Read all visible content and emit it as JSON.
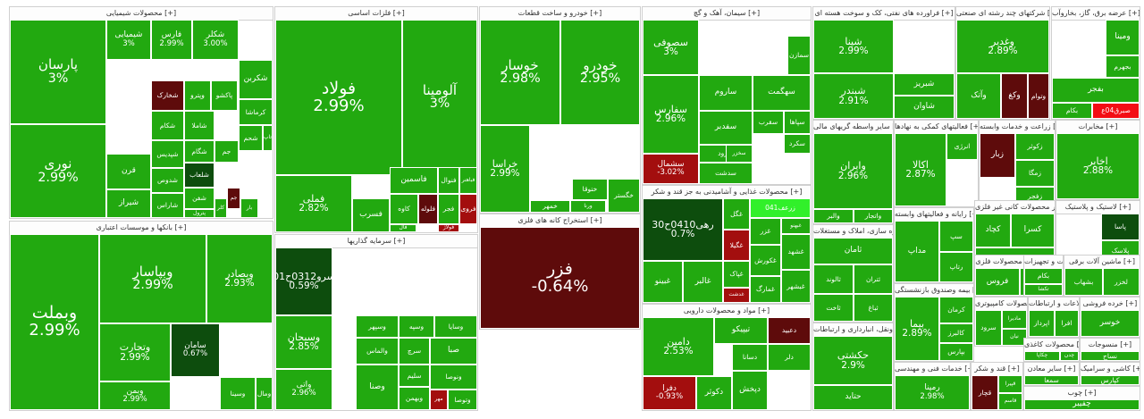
{
  "colors": {
    "up": "#22a910",
    "mid": "#1f8f0e",
    "weak": "#176d0d",
    "dark": "#0d4d0d",
    "red": "#a30e0e",
    "maroon": "#5e0b0b",
    "bright_red": "#f30d14",
    "lime": "#31f02a",
    "text": "#ffffff"
  },
  "chart_data": {
    "type": "treemap",
    "title": "Market heat map",
    "sectors": [
      {
        "name": "محصولات شیمیایی [+]",
        "tiles": [
          {
            "name": "پارسان",
            "change": "3%",
            "color": "up"
          },
          {
            "name": "نوری",
            "change": "2.99%",
            "color": "up"
          },
          {
            "name": "شیمیایی",
            "change": "3%",
            "color": "up"
          },
          {
            "name": "فارس",
            "change": "2.99%",
            "color": "up"
          },
          {
            "name": "شکلر",
            "change": "3.00%",
            "color": "up"
          },
          {
            "name": "شخارک",
            "color": "maroon"
          },
          {
            "name": "وپترو",
            "color": "up"
          },
          {
            "name": "پاکشو",
            "color": "up"
          },
          {
            "name": "شکربن",
            "color": "up"
          },
          {
            "name": "شکام",
            "color": "up"
          },
          {
            "name": "شپدیس",
            "color": "up"
          },
          {
            "name": "شاملا",
            "color": "up"
          },
          {
            "name": "کرماشا",
            "color": "up"
          },
          {
            "name": "شگام",
            "color": "up"
          },
          {
            "name": "جم",
            "color": "up"
          },
          {
            "name": "شحم",
            "color": "up"
          },
          {
            "name": "تاپ",
            "color": "up"
          },
          {
            "name": "قرن",
            "color": "up"
          },
          {
            "name": "شدوص",
            "color": "up"
          },
          {
            "name": "شلعاب",
            "color": "dark"
          },
          {
            "name": "شیراز",
            "color": "up"
          },
          {
            "name": "شاراس",
            "color": "up"
          },
          {
            "name": "شفن",
            "color": "up"
          },
          {
            "name": "زاگرس",
            "color": "up"
          },
          {
            "name": "پترول",
            "color": "up"
          },
          {
            "name": "جم",
            "color": "maroon"
          },
          {
            "name": "بار",
            "color": "up"
          },
          {
            "name": "کلر",
            "color": "up"
          }
        ]
      },
      {
        "name": "فلزات اساسی [+]",
        "tiles": [
          {
            "name": "فولاد",
            "change": "2.99%",
            "color": "up"
          },
          {
            "name": "آلومینا",
            "change": "3%",
            "color": "up"
          },
          {
            "name": "فملی",
            "change": "2.82%",
            "color": "up"
          },
          {
            "name": "فخوز",
            "change": "1.88%",
            "color": "weak"
          },
          {
            "name": "فاسمین",
            "color": "up"
          },
          {
            "name": "فنوال",
            "color": "up"
          },
          {
            "name": "فباهنر",
            "color": "up"
          },
          {
            "name": "فلوله",
            "color": "maroon"
          },
          {
            "name": "کاوه",
            "color": "up"
          },
          {
            "name": "فجر",
            "color": "up"
          },
          {
            "name": "فروی",
            "color": "red"
          },
          {
            "name": "فولاژ",
            "color": "red"
          },
          {
            "name": "فسرب",
            "color": "up"
          },
          {
            "name": "فسبزوار",
            "color": "up"
          },
          {
            "name": "فال",
            "color": "up"
          }
        ]
      },
      {
        "name": "خودرو و ساخت قطعات [+]",
        "tiles": [
          {
            "name": "خوسار",
            "change": "2.98%",
            "color": "up"
          },
          {
            "name": "خودرو",
            "change": "2.95%",
            "color": "up"
          },
          {
            "name": "خراسا",
            "change": "2.99%",
            "color": "up"
          },
          {
            "name": "خمهر",
            "color": "up"
          },
          {
            "name": "ختوقا",
            "color": "up"
          },
          {
            "name": "ورنا",
            "color": "up"
          },
          {
            "name": "خگستر",
            "color": "up"
          }
        ]
      },
      {
        "name": "استخراج کانه های فلزی [+]",
        "tiles": [
          {
            "name": "فزر",
            "change": "-0.64%",
            "color": "maroon"
          }
        ]
      },
      {
        "name": "سیمان، آهک و گچ [+]",
        "tiles": [
          {
            "name": "سصوفی",
            "change": "3%",
            "color": "up"
          },
          {
            "name": "سفارس",
            "change": "2.96%",
            "color": "up"
          },
          {
            "name": "ساروم",
            "color": "up"
          },
          {
            "name": "سهگمت",
            "color": "up"
          },
          {
            "name": "سمازن",
            "color": "up"
          },
          {
            "name": "سقرب",
            "color": "up"
          },
          {
            "name": "سپاها",
            "color": "up"
          },
          {
            "name": "سکرد",
            "color": "up"
          },
          {
            "name": "سفدبر",
            "color": "up"
          },
          {
            "name": "سرود",
            "color": "up"
          },
          {
            "name": "سدشت",
            "color": "up"
          },
          {
            "name": "سخزر",
            "color": "up"
          },
          {
            "name": "سشمال",
            "change": "-3.02%",
            "color": "red"
          }
        ]
      },
      {
        "name": "فراورده های نفتی، کک و سوخت هسته ای [+]",
        "tiles": [
          {
            "name": "شپنا",
            "change": "2.99%",
            "color": "up"
          },
          {
            "name": "شبندر",
            "change": "2.91%",
            "color": "up"
          },
          {
            "name": "شبریز",
            "color": "up"
          },
          {
            "name": "شاوان",
            "color": "up"
          }
        ]
      },
      {
        "name": "شرکتهای چند رشته ای صنعتی [+]",
        "tiles": [
          {
            "name": "وغدیر",
            "change": "2.89%",
            "color": "up"
          },
          {
            "name": "وکغ",
            "color": "maroon"
          },
          {
            "name": "وآتک",
            "color": "up"
          },
          {
            "name": "وتوام",
            "color": "maroon"
          }
        ]
      },
      {
        "name": "عرضه برق، گاز، بخاروآب [+]",
        "tiles": [
          {
            "name": "ومینا",
            "color": "up"
          },
          {
            "name": "بجهرم",
            "color": "up"
          },
          {
            "name": "بفجر",
            "color": "up"
          },
          {
            "name": "بکام",
            "color": "up"
          },
          {
            "name": "صبرق04ع",
            "color": "bright_red"
          }
        ]
      },
      {
        "name": "بانکها و موسسات اعتباری [+]",
        "tiles": [
          {
            "name": "وبپاسار",
            "change": "2.99%",
            "color": "up"
          },
          {
            "name": "وبملت",
            "change": "2.99%",
            "color": "up"
          },
          {
            "name": "وبصادر",
            "change": "2.93%",
            "color": "up"
          },
          {
            "name": "وتجارت",
            "change": "2.99%",
            "color": "up"
          },
          {
            "name": "وبمن",
            "change": "2.99%",
            "color": "up"
          },
          {
            "name": "سامان",
            "change": "0.67%",
            "color": "dark"
          },
          {
            "name": "وسینا",
            "color": "up"
          },
          {
            "name": "ومال",
            "color": "up"
          }
        ]
      },
      {
        "name": "سرمایه گذاریها [+]",
        "tiles": [
          {
            "name": "سرو0312ح01",
            "change": "0.59%",
            "color": "dark"
          },
          {
            "name": "وسبحان",
            "change": "2.85%",
            "color": "up"
          },
          {
            "name": "واتی",
            "change": "2.96%",
            "color": "up"
          },
          {
            "name": "وسپهر",
            "color": "up"
          },
          {
            "name": "وسپه",
            "color": "up"
          },
          {
            "name": "وسایا",
            "color": "up"
          },
          {
            "name": "والماس",
            "color": "up"
          },
          {
            "name": "سرچ",
            "color": "up"
          },
          {
            "name": "وصنا",
            "color": "up"
          },
          {
            "name": "سلیم",
            "color": "up"
          },
          {
            "name": "وبهمن",
            "color": "up"
          },
          {
            "name": "صبا",
            "color": "up"
          },
          {
            "name": "ونوصا",
            "color": "up"
          },
          {
            "name": "مهر",
            "color": "red"
          },
          {
            "name": "وتوصا",
            "color": "up"
          },
          {
            "name": "سکا",
            "color": "dark"
          }
        ]
      },
      {
        "name": "محصولات غذایی و آشامیدنی به جز قند و شکر [+]",
        "tiles": [
          {
            "name": "زرعف041",
            "color": "lime"
          },
          {
            "name": "رهی0410ح30",
            "change": "0.7%",
            "color": "dark"
          },
          {
            "name": "غگل",
            "color": "up"
          },
          {
            "name": "غگیلا",
            "color": "red"
          },
          {
            "name": "غبهنو",
            "color": "up"
          },
          {
            "name": "غزر",
            "color": "up"
          },
          {
            "name": "غکورش",
            "color": "up"
          },
          {
            "name": "غبینو",
            "color": "up"
          },
          {
            "name": "غالبر",
            "color": "up"
          },
          {
            "name": "غپاک",
            "color": "up"
          },
          {
            "name": "غمارگ",
            "color": "up"
          },
          {
            "name": "غشهد",
            "color": "up"
          },
          {
            "name": "غبشهر",
            "color": "up"
          },
          {
            "name": "غدشت",
            "color": "red"
          }
        ]
      },
      {
        "name": "مواد و محصولات دارویی [+]",
        "tiles": [
          {
            "name": "دعبید",
            "color": "maroon"
          },
          {
            "name": "تیپیکو",
            "color": "up"
          },
          {
            "name": "دامین",
            "change": "2.53%",
            "color": "up"
          },
          {
            "name": "دکوثر",
            "color": "up"
          },
          {
            "name": "دسانا",
            "color": "up"
          },
          {
            "name": "دپخش",
            "color": "up"
          },
          {
            "name": "دلر",
            "color": "up"
          },
          {
            "name": "دفرا",
            "change": "-0.93%",
            "color": "red"
          }
        ]
      },
      {
        "name": "سایر واسطه گریهای مالی [+]",
        "tiles": [
          {
            "name": "وایران",
            "change": "2.96%",
            "color": "up"
          },
          {
            "name": "والبر",
            "color": "up"
          },
          {
            "name": "واتجار",
            "color": "up"
          }
        ]
      },
      {
        "name": "فعالیتهای کمکی به نهادها [+]",
        "tiles": [
          {
            "name": "اکالا",
            "change": "2.87%",
            "color": "up"
          },
          {
            "name": "انرژی",
            "color": "up"
          }
        ]
      },
      {
        "name": "زراعت و خدمات وابسته [+]",
        "tiles": [
          {
            "name": "زکوثر",
            "color": "up"
          },
          {
            "name": "زبار",
            "color": "maroon"
          },
          {
            "name": "زمگا",
            "color": "up"
          },
          {
            "name": "زفجر",
            "color": "up"
          }
        ]
      },
      {
        "name": "مخابرات [+]",
        "tiles": [
          {
            "name": "اخابر",
            "change": "2.88%",
            "color": "up"
          }
        ]
      },
      {
        "name": "انبوه سازی، املاک و مستغلات [+]",
        "tiles": [
          {
            "name": "ثامان",
            "color": "up"
          },
          {
            "name": "ثالوند",
            "color": "up"
          },
          {
            "name": "ثتران",
            "color": "up"
          },
          {
            "name": "ثاخت",
            "color": "up"
          },
          {
            "name": "ثعمرا",
            "color": "up"
          },
          {
            "name": "ثامید",
            "color": "up"
          },
          {
            "name": "ثرکت",
            "color": "up"
          },
          {
            "name": "ثباغ",
            "color": "up"
          }
        ]
      },
      {
        "name": "بیمه وصندوق بازنشستگی [+]",
        "tiles": [
          {
            "name": "بیما",
            "change": "2.89%",
            "color": "up"
          },
          {
            "name": "کرمان",
            "color": "up"
          },
          {
            "name": "کالبرز",
            "color": "up"
          },
          {
            "name": "بپارس",
            "color": "up"
          },
          {
            "name": "کدما",
            "color": "up"
          },
          {
            "name": "بنیرو",
            "color": "up"
          }
        ]
      },
      {
        "name": "حمل ونقل، انبارداری و ارتباطات [+]",
        "tiles": [
          {
            "name": "حکشتی",
            "change": "2.9%",
            "color": "up"
          },
          {
            "name": "حتاید",
            "color": "up"
          }
        ]
      },
      {
        "name": "خدمات فنی و مهندسی [+]",
        "tiles": [
          {
            "name": "رمپنا",
            "change": "2.98%",
            "color": "up"
          }
        ]
      },
      {
        "name": "رایانه و فعالیتهای وابسته [+]",
        "tiles": [
          {
            "name": "مداپ",
            "color": "up"
          },
          {
            "name": "سپ",
            "color": "up"
          },
          {
            "name": "رتاپ",
            "color": "up"
          }
        ]
      },
      {
        "name": "سایر محصولات کانی غیر فلزی [+]",
        "tiles": [
          {
            "name": "کسرا",
            "color": "up"
          },
          {
            "name": "کچاد",
            "color": "up"
          },
          {
            "name": "کهمدا",
            "color": "up"
          }
        ]
      },
      {
        "name": "لاستیک و پلاستیک [+]",
        "tiles": [
          {
            "name": "پاسا",
            "color": "dark"
          },
          {
            "name": "پلاسک",
            "color": "up"
          }
        ]
      },
      {
        "name": "ساخت محصولات فلزی [+]",
        "tiles": [
          {
            "name": "فروس",
            "color": "up"
          },
          {
            "name": "فنفت",
            "color": "up"
          }
        ]
      },
      {
        "name": "ماشین آلات و تجهیزات [+]",
        "tiles": [
          {
            "name": "بکام",
            "color": "up"
          },
          {
            "name": "تکشا",
            "color": "up"
          }
        ]
      },
      {
        "name": "ماشین آلات برقی [+]",
        "tiles": [
          {
            "name": "بشهاب",
            "color": "up"
          },
          {
            "name": "لخزر",
            "color": "up"
          }
        ]
      },
      {
        "name": "تولید محصولات کامپیوتری [+]",
        "tiles": [
          {
            "name": "سرود",
            "color": "up"
          },
          {
            "name": "مادیرا",
            "color": "up"
          },
          {
            "name": "نیان",
            "color": "up"
          }
        ]
      },
      {
        "name": "اطلاعات و ارتباطات [+]",
        "tiles": [
          {
            "name": "اپرداز",
            "color": "up"
          },
          {
            "name": "افرا",
            "color": "up"
          }
        ]
      },
      {
        "name": "خرده فروشی [+]",
        "tiles": [
          {
            "name": "خوسر",
            "color": "up"
          }
        ]
      },
      {
        "name": "محصولات کاغذی [+]",
        "tiles": [
          {
            "name": "چکاپا",
            "color": "up"
          },
          {
            "name": "چدن",
            "color": "up"
          }
        ]
      },
      {
        "name": "قند و شکر [+]",
        "tiles": [
          {
            "name": "قچار",
            "color": "maroon"
          },
          {
            "name": "قپیرا",
            "color": "up"
          },
          {
            "name": "قاسم",
            "color": "up"
          }
        ]
      },
      {
        "name": "منسوجات [+]",
        "tiles": [
          {
            "name": "نساج",
            "color": "up"
          }
        ]
      },
      {
        "name": "سایر معادن [+]",
        "tiles": [
          {
            "name": "سمعا",
            "color": "up"
          }
        ]
      },
      {
        "name": "کاشی و سرامیک [+]",
        "tiles": [
          {
            "name": "کپارس",
            "color": "up"
          }
        ]
      },
      {
        "name": "چوب [+]",
        "tiles": [
          {
            "name": "چفیبر",
            "color": "up"
          }
        ]
      },
      {
        "name": "دستگاه برقی [+]",
        "tiles": [
          {
            "name": "بترانس",
            "color": "up"
          }
        ]
      }
    ]
  }
}
